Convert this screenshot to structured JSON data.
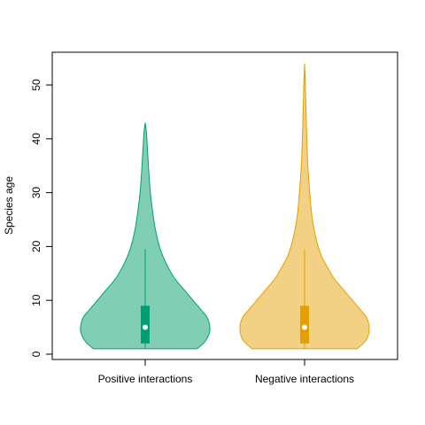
{
  "chart_data": {
    "type": "violin",
    "title": "",
    "xlabel": "",
    "ylabel": "Species age",
    "ylim": [
      -1,
      56
    ],
    "yticks": [
      0,
      10,
      20,
      30,
      40,
      50
    ],
    "grid": false,
    "legend": "none",
    "categories": [
      "Positive interactions",
      "Negative interactions"
    ],
    "series": [
      {
        "name": "Positive interactions",
        "fill": "#80cfb5",
        "stroke": "#009e73",
        "box_color": "#009e73",
        "min": 1,
        "max": 43,
        "q1": 2,
        "median": 5,
        "q3": 9,
        "whisker_low": 1,
        "whisker_high": 19.5,
        "density": [
          [
            1,
            0.8
          ],
          [
            2,
            0.9
          ],
          [
            3,
            0.96
          ],
          [
            4,
            0.995
          ],
          [
            5,
            1.0
          ],
          [
            6,
            0.985
          ],
          [
            7,
            0.95
          ],
          [
            8,
            0.88
          ],
          [
            10,
            0.74
          ],
          [
            12,
            0.6
          ],
          [
            14,
            0.46
          ],
          [
            16,
            0.36
          ],
          [
            18,
            0.28
          ],
          [
            20,
            0.22
          ],
          [
            23,
            0.16
          ],
          [
            26,
            0.12
          ],
          [
            30,
            0.08
          ],
          [
            34,
            0.055
          ],
          [
            38,
            0.035
          ],
          [
            41,
            0.02
          ],
          [
            43,
            0.0
          ]
        ]
      },
      {
        "name": "Negative interactions",
        "fill": "#f2d084",
        "stroke": "#e69f00",
        "box_color": "#e69f00",
        "min": 1,
        "max": 54,
        "q1": 2,
        "median": 5,
        "q3": 9,
        "whisker_low": 1,
        "whisker_high": 19.5,
        "density": [
          [
            1,
            0.81
          ],
          [
            2,
            0.91
          ],
          [
            3,
            0.97
          ],
          [
            4,
            0.995
          ],
          [
            5,
            1.0
          ],
          [
            6,
            0.985
          ],
          [
            7,
            0.95
          ],
          [
            8,
            0.88
          ],
          [
            10,
            0.74
          ],
          [
            12,
            0.6
          ],
          [
            14,
            0.46
          ],
          [
            16,
            0.36
          ],
          [
            18,
            0.27
          ],
          [
            20,
            0.21
          ],
          [
            23,
            0.15
          ],
          [
            26,
            0.11
          ],
          [
            30,
            0.08
          ],
          [
            34,
            0.055
          ],
          [
            38,
            0.04
          ],
          [
            44,
            0.025
          ],
          [
            50,
            0.012
          ],
          [
            54,
            0.0
          ]
        ]
      }
    ]
  }
}
